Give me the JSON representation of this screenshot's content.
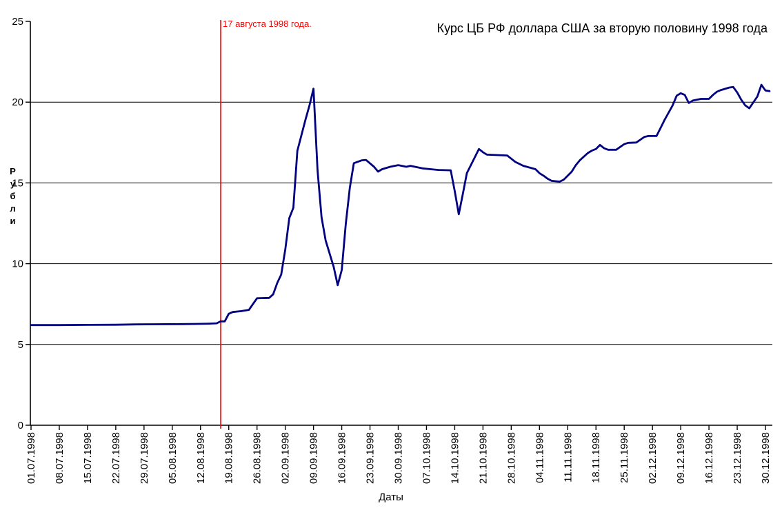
{
  "chart_data": {
    "type": "line",
    "title": "Курс ЦБ РФ доллара США за вторую половину 1998 года",
    "xlabel": "Даты",
    "ylabel": "Рубли",
    "ylim": [
      0,
      25
    ],
    "y_ticks": [
      0,
      5,
      10,
      15,
      20,
      25
    ],
    "grid_y_values": [
      5,
      10,
      15,
      20
    ],
    "grid": "horizontal-only",
    "legend_position": "none",
    "x_tick_labels": [
      "01.07.1998",
      "08.07.1998",
      "15.07.1998",
      "22.07.1998",
      "29.07.1998",
      "05.08.1998",
      "12.08.1998",
      "19.08.1998",
      "26.08.1998",
      "02.09.1998",
      "09.09.1998",
      "16.09.1998",
      "23.09.1998",
      "30.09.1998",
      "07.10.1998",
      "14.10.1998",
      "21.10.1998",
      "28.10.1998",
      "04.11.1998",
      "11.11.1998",
      "18.11.1998",
      "25.11.1998",
      "02.12.1998",
      "09.12.1998",
      "16.12.1998",
      "23.12.1998",
      "30.12.1998"
    ],
    "annotation": {
      "text": "17 августа 1998 года.",
      "x_date": "17.08.1998",
      "color": "#FF0000"
    },
    "colors": {
      "line": "#000080",
      "axis": "#000000",
      "grid": "#000000",
      "event_line": "#FF0000"
    },
    "series": [
      {
        "points": [
          [
            "01.07",
            6.2
          ],
          [
            "08.07",
            6.2
          ],
          [
            "15.07",
            6.21
          ],
          [
            "22.07",
            6.22
          ],
          [
            "27.07",
            6.24
          ],
          [
            "01.08",
            6.25
          ],
          [
            "07.08",
            6.26
          ],
          [
            "11.08",
            6.27
          ],
          [
            "14.08",
            6.29
          ],
          [
            "16.08",
            6.31
          ],
          [
            "17.08",
            6.43
          ],
          [
            "18.08",
            6.43
          ],
          [
            "19.08",
            6.9
          ],
          [
            "20.08",
            7.01
          ],
          [
            "22.08",
            7.06
          ],
          [
            "24.08",
            7.14
          ],
          [
            "25.08",
            7.5
          ],
          [
            "26.08",
            7.86
          ],
          [
            "29.08",
            7.88
          ],
          [
            "30.08",
            8.1
          ],
          [
            "31.08",
            8.8
          ],
          [
            "01.09",
            9.33
          ],
          [
            "02.09",
            10.88
          ],
          [
            "03.09",
            12.82
          ],
          [
            "04.09",
            13.46
          ],
          [
            "05.09",
            16.99
          ],
          [
            "07.09",
            18.9
          ],
          [
            "08.09",
            19.8
          ],
          [
            "09.09",
            20.83
          ],
          [
            "10.09",
            15.77
          ],
          [
            "11.09",
            12.87
          ],
          [
            "12.09",
            11.44
          ],
          [
            "14.09",
            9.8
          ],
          [
            "15.09",
            8.67
          ],
          [
            "16.09",
            9.61
          ],
          [
            "17.09",
            12.45
          ],
          [
            "18.09",
            14.7
          ],
          [
            "19.09",
            16.22
          ],
          [
            "21.09",
            16.4
          ],
          [
            "22.09",
            16.42
          ],
          [
            "24.09",
            16.0
          ],
          [
            "25.09",
            15.7
          ],
          [
            "26.09",
            15.85
          ],
          [
            "28.09",
            16.0
          ],
          [
            "30.09",
            16.1
          ],
          [
            "02.10",
            16.0
          ],
          [
            "03.10",
            16.06
          ],
          [
            "06.10",
            15.9
          ],
          [
            "08.10",
            15.85
          ],
          [
            "10.10",
            15.8
          ],
          [
            "13.10",
            15.78
          ],
          [
            "14.10",
            14.5
          ],
          [
            "15.10",
            13.06
          ],
          [
            "16.10",
            14.3
          ],
          [
            "17.10",
            15.6
          ],
          [
            "19.10",
            16.6
          ],
          [
            "20.10",
            17.1
          ],
          [
            "21.10",
            16.9
          ],
          [
            "22.10",
            16.75
          ],
          [
            "27.10",
            16.7
          ],
          [
            "28.10",
            16.5
          ],
          [
            "29.10",
            16.3
          ],
          [
            "31.10",
            16.06
          ],
          [
            "03.11",
            15.85
          ],
          [
            "04.11",
            15.6
          ],
          [
            "05.11",
            15.45
          ],
          [
            "06.11",
            15.26
          ],
          [
            "07.11",
            15.13
          ],
          [
            "09.11",
            15.08
          ],
          [
            "10.11",
            15.2
          ],
          [
            "11.11",
            15.45
          ],
          [
            "12.11",
            15.7
          ],
          [
            "13.11",
            16.1
          ],
          [
            "14.11",
            16.4
          ],
          [
            "16.11",
            16.85
          ],
          [
            "17.11",
            17.0
          ],
          [
            "18.11",
            17.1
          ],
          [
            "19.11",
            17.35
          ],
          [
            "20.11",
            17.15
          ],
          [
            "21.11",
            17.05
          ],
          [
            "23.11",
            17.05
          ],
          [
            "25.11",
            17.4
          ],
          [
            "26.11",
            17.48
          ],
          [
            "28.11",
            17.5
          ],
          [
            "30.11",
            17.85
          ],
          [
            "01.12",
            17.9
          ],
          [
            "03.12",
            17.9
          ],
          [
            "04.12",
            18.4
          ],
          [
            "05.12",
            18.9
          ],
          [
            "07.12",
            19.8
          ],
          [
            "08.12",
            20.4
          ],
          [
            "09.12",
            20.55
          ],
          [
            "10.12",
            20.45
          ],
          [
            "11.12",
            19.95
          ],
          [
            "12.12",
            20.1
          ],
          [
            "14.12",
            20.2
          ],
          [
            "16.12",
            20.2
          ],
          [
            "17.12",
            20.45
          ],
          [
            "18.12",
            20.65
          ],
          [
            "19.12",
            20.75
          ],
          [
            "21.12",
            20.9
          ],
          [
            "22.12",
            20.94
          ],
          [
            "23.12",
            20.6
          ],
          [
            "24.12",
            20.15
          ],
          [
            "25.12",
            19.8
          ],
          [
            "26.12",
            19.62
          ],
          [
            "28.12",
            20.35
          ],
          [
            "29.12",
            21.07
          ],
          [
            "30.12",
            20.72
          ],
          [
            "31.12",
            20.68
          ]
        ]
      }
    ]
  }
}
